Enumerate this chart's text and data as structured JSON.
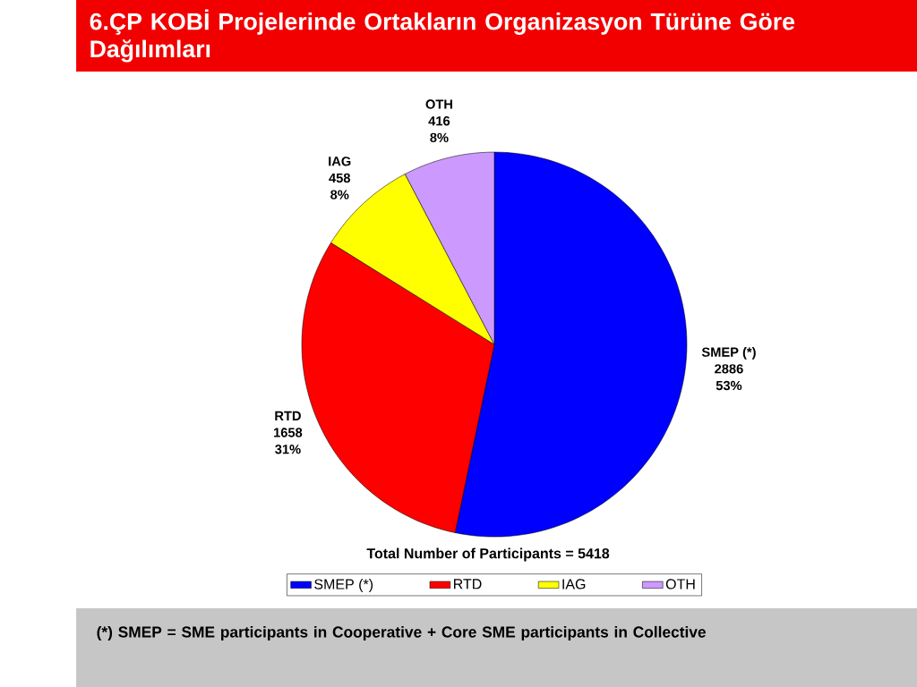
{
  "chart_data": {
    "type": "pie",
    "title": "6.ÇP KOBİ Projelerinde Ortakların Organizasyon Türüne Göre Dağılımları",
    "categories": [
      "SMEP (*)",
      "RTD",
      "IAG",
      "OTH"
    ],
    "values": [
      2886,
      1658,
      458,
      416
    ],
    "colors": [
      "#0000ff",
      "#ff0000",
      "#ffff00",
      "#cc99ff"
    ],
    "value_labels": [
      "2886",
      "1658",
      "458",
      "416"
    ],
    "legend": "bottom",
    "annotations": [
      "Total Number of Participants = 5418",
      "(*) SMEP = SME participants in Cooperative + Core SME participants in Collective",
      {
        "text": "53%",
        "x": "SMEP (*)"
      },
      {
        "text": "31%",
        "x": "RTD"
      },
      {
        "text": "8%",
        "x": "IAG"
      },
      {
        "text": "8%",
        "x": "OTH"
      }
    ]
  }
}
